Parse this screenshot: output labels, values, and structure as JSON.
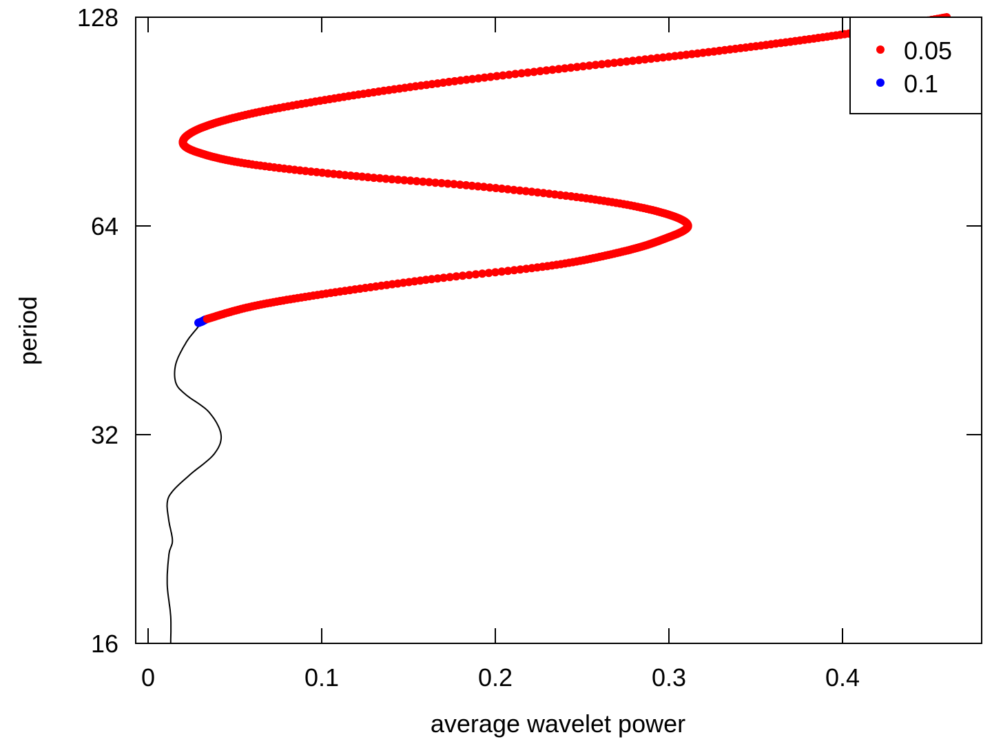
{
  "chart_data": {
    "type": "line",
    "title": "",
    "xlabel": "average wavelet power",
    "ylabel": "period",
    "x_ticks": [
      "0",
      "0.1",
      "0.2",
      "0.3",
      "0.4"
    ],
    "x_tick_values": [
      0,
      0.1,
      0.2,
      0.3,
      0.4
    ],
    "y_ticks": [
      "16",
      "32",
      "64",
      "128"
    ],
    "y_tick_values": [
      16,
      32,
      64,
      128
    ],
    "xlim": [
      -0.008,
      0.482
    ],
    "ylim": [
      16,
      128
    ],
    "y_scale": "log2",
    "grid": false,
    "legend": {
      "placement": "top-right",
      "entries": [
        {
          "label": "0.05",
          "color": "#ff0000"
        },
        {
          "label": "0.1",
          "color": "#0000ff"
        }
      ]
    },
    "series": [
      {
        "style": "line",
        "color": "#000000",
        "points": [
          [
            0.013,
            16
          ],
          [
            0.013,
            17.5
          ],
          [
            0.011,
            19.5
          ],
          [
            0.012,
            21.5
          ],
          [
            0.014,
            22.5
          ],
          [
            0.012,
            24
          ],
          [
            0.011,
            25.5
          ],
          [
            0.014,
            26.5
          ],
          [
            0.024,
            28
          ],
          [
            0.038,
            30
          ],
          [
            0.042,
            32
          ],
          [
            0.035,
            34.5
          ],
          [
            0.022,
            36.5
          ],
          [
            0.016,
            38
          ],
          [
            0.016,
            40.5
          ],
          [
            0.022,
            43.5
          ],
          [
            0.028,
            45.5
          ],
          [
            0.031,
            46.5
          ]
        ]
      },
      {
        "name": "0.1",
        "style": "points",
        "color": "#0000ff",
        "points": [
          [
            0.029,
            46.4
          ],
          [
            0.031,
            46.6
          ],
          [
            0.033,
            46.9
          ]
        ]
      },
      {
        "name": "0.05",
        "style": "points",
        "color": "#ff0000",
        "points": [
          [
            0.034,
            47
          ],
          [
            0.06,
            49
          ],
          [
            0.1,
            51
          ],
          [
            0.16,
            53.5
          ],
          [
            0.23,
            56
          ],
          [
            0.27,
            58.5
          ],
          [
            0.295,
            61
          ],
          [
            0.311,
            64
          ],
          [
            0.295,
            67
          ],
          [
            0.255,
            70
          ],
          [
            0.19,
            73
          ],
          [
            0.12,
            75.5
          ],
          [
            0.06,
            78.5
          ],
          [
            0.03,
            81.5
          ],
          [
            0.02,
            84.5
          ],
          [
            0.03,
            88.5
          ],
          [
            0.06,
            93
          ],
          [
            0.11,
            98
          ],
          [
            0.17,
            103
          ],
          [
            0.24,
            108
          ],
          [
            0.31,
            113
          ],
          [
            0.37,
            118
          ],
          [
            0.42,
            123
          ],
          [
            0.46,
            128
          ]
        ]
      }
    ]
  }
}
